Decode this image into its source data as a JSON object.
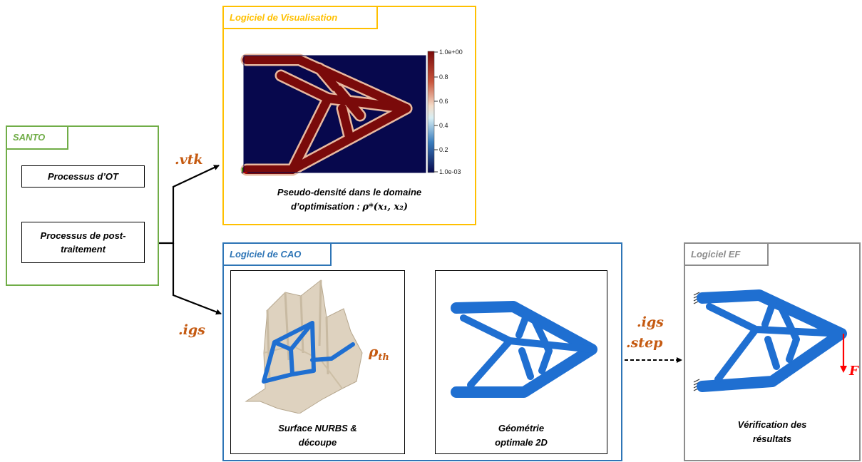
{
  "santo": {
    "title": "SANTO",
    "step1": "Processus d’OT",
    "step2_line1": "Processus de post-",
    "step2_line2": "traitement"
  },
  "visualisation": {
    "title": "Logiciel de Visualisation",
    "caption_line1": "Pseudo-densité dans le domaine",
    "caption_line2": "d’optimisation : ",
    "caption_formula": "ρ*(x₁, x₂)",
    "colorbar": {
      "max_label": "1.0e+00",
      "ticks": [
        "0.8",
        "0.6",
        "0.4",
        "0.2"
      ],
      "min_label": "1.0e-03"
    }
  },
  "cao": {
    "title": "Logiciel de CAO",
    "panel1_caption_line1": "Surface NURBS &",
    "panel1_caption_line2": "découpe",
    "threshold_symbol": "ρ",
    "threshold_subscript": "th",
    "panel2_caption_line1": "Géométrie",
    "panel2_caption_line2": "optimale 2D"
  },
  "ef": {
    "title": "Logiciel EF",
    "caption_line1": "Vérification des",
    "caption_line2": "résultats",
    "force_label": "F"
  },
  "formats": {
    "vtk": ".vtk",
    "igs_left": ".igs",
    "igs_right": ".igs",
    "step": ".step"
  },
  "colors": {
    "santo_green": "#70ad47",
    "vis_gold": "#ffc000",
    "cao_blue": "#2e75b6",
    "ef_gray": "#8c8c8c",
    "format_orange": "#c55a11",
    "structure_blue": "#1f6fd1",
    "field_dark_red": "#7a0a0a",
    "field_navy": "#07084d",
    "force_red": "#ff0000"
  }
}
